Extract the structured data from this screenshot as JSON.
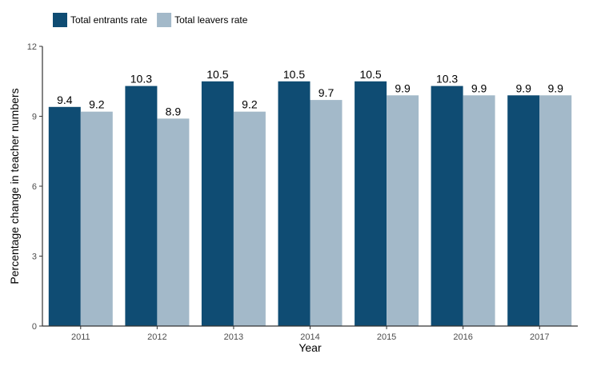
{
  "chart_data": {
    "type": "bar",
    "title": "",
    "xlabel": "Year",
    "ylabel": "Percentage change in teacher numbers",
    "categories": [
      "2011",
      "2012",
      "2013",
      "2014",
      "2015",
      "2016",
      "2017"
    ],
    "series": [
      {
        "name": "Total entrants rate",
        "color": "#0f4c73",
        "values": [
          9.4,
          10.3,
          10.5,
          10.5,
          10.5,
          10.3,
          9.9
        ],
        "labels": [
          "9.4",
          "10.3",
          "10.5",
          "10.5",
          "10.5",
          "10.3",
          "9.9"
        ]
      },
      {
        "name": "Total leavers rate",
        "color": "#a3b9c9",
        "values": [
          9.2,
          8.9,
          9.2,
          9.7,
          9.9,
          9.9,
          9.9
        ],
        "labels": [
          "9.2",
          "8.9",
          "9.2",
          "9.7",
          "9.9",
          "9.9",
          "9.9"
        ]
      }
    ],
    "ylim": [
      0,
      12
    ],
    "yticks": [
      "0",
      "3",
      "6",
      "9",
      "12"
    ],
    "grid": false,
    "legend_position": "top-left"
  }
}
